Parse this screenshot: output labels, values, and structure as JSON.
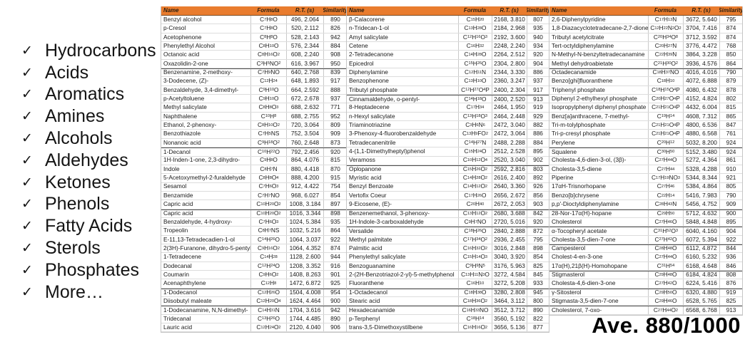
{
  "check_icon": "✓",
  "sidebar": {
    "items": [
      {
        "label": "Hydrocarbons"
      },
      {
        "label": "Acids"
      },
      {
        "label": "Aromatics"
      },
      {
        "label": "Amines"
      },
      {
        "label": "Alcohols"
      },
      {
        "label": "Aldehydes"
      },
      {
        "label": "Ketones"
      },
      {
        "label": "Phenols"
      },
      {
        "label": "Fatty Acids"
      },
      {
        "label": "Sterols"
      },
      {
        "label": "Phosphates"
      },
      {
        "label": "More…"
      }
    ]
  },
  "footer": {
    "average_label": "Ave. 880/1000"
  },
  "colors": {
    "header_bg": "#e97c2e",
    "header_text": "#2b2012",
    "row_border": "#dcdcdc",
    "group_border": "#4f4f4f"
  },
  "tables": [
    {
      "columns": [
        "Name",
        "Formula",
        "R.T. (s)",
        "Similarity"
      ],
      "rows": [
        {
          "name": "Benzyl alcohol",
          "formula": "C7H8O",
          "rt": "496, 2.064",
          "sim": "890"
        },
        {
          "name": "p-Cresol",
          "formula": "C7H8O",
          "rt": "520, 2.112",
          "sim": "826"
        },
        {
          "name": "Acetophenone",
          "formula": "C8H8O",
          "rt": "528, 2.143",
          "sim": "942"
        },
        {
          "name": "Phenylethyl Alcohol",
          "formula": "C8H10O",
          "rt": "576, 2.344",
          "sim": "884"
        },
        {
          "name": "Octanoic acid",
          "formula": "C8H16O2",
          "rt": "608, 2.240",
          "sim": "908"
        },
        {
          "name": "Oxazolidin-2-one",
          "formula": "C3H5NO2",
          "rt": "616, 3.967",
          "sim": "950"
        },
        {
          "name": "Benzenamine, 2-methoxy-",
          "formula": "C7H9NO",
          "rt": "640, 2.768",
          "sim": "839",
          "sep": true
        },
        {
          "name": "3-Dodecene, (Z)-",
          "formula": "C12H24",
          "rt": "648, 1.893",
          "sim": "917"
        },
        {
          "name": "Benzaldehyde, 3,4-dimethyl-",
          "formula": "C9H10O",
          "rt": "664, 2.592",
          "sim": "888"
        },
        {
          "name": "p-Acetyltoluene",
          "formula": "C9H10O",
          "rt": "672, 2.678",
          "sim": "937"
        },
        {
          "name": "Methyl salicylate",
          "formula": "C8H8O3",
          "rt": "688, 2.632",
          "sim": "771"
        },
        {
          "name": "Naphthalene",
          "formula": "C10H8",
          "rt": "688, 2.755",
          "sim": "952"
        },
        {
          "name": "Ethanol, 2-phenoxy-",
          "formula": "C8H10O2",
          "rt": "720, 3.064",
          "sim": "809"
        },
        {
          "name": "Benzothiazole",
          "formula": "C7H5NS",
          "rt": "752, 3.504",
          "sim": "909"
        },
        {
          "name": "Nonanoic acid",
          "formula": "C9H18O2",
          "rt": "760, 2.648",
          "sim": "873"
        },
        {
          "name": "1-Decanol",
          "formula": "C10H22O",
          "rt": "792, 2.456",
          "sim": "920",
          "sep": true
        },
        {
          "name": "1H-Inden-1-one, 2,3-dihydro-",
          "formula": "C9H8O",
          "rt": "864, 4.076",
          "sim": "815"
        },
        {
          "name": "Indole",
          "formula": "C8H7N",
          "rt": "880, 4.418",
          "sim": "870"
        },
        {
          "name": "5-Acetoxymethyl-2-furaldehyde",
          "formula": "C8H8O4",
          "rt": "888, 4.200",
          "sim": "915"
        },
        {
          "name": "Sesamol",
          "formula": "C7H6O3",
          "rt": "912, 4.422",
          "sim": "754"
        },
        {
          "name": "Benzamide",
          "formula": "C7H7NO",
          "rt": "968, 6.027",
          "sim": "854"
        },
        {
          "name": "Capric acid",
          "formula": "C10H20O2",
          "rt": "1008, 3.184",
          "sim": "897"
        },
        {
          "name": "Capric acid",
          "formula": "C10H20O2",
          "rt": "1016, 3.344",
          "sim": "898",
          "sep": true
        },
        {
          "name": "Benzaldehyde, 4-hydroxy-",
          "formula": "C7H6O3",
          "rt": "1024, 5.384",
          "sim": "935"
        },
        {
          "name": "Tropeolin",
          "formula": "C8H7NS",
          "rt": "1032, 5.216",
          "sim": "864"
        },
        {
          "name": "E-11,13-Tetradecadien-1-ol",
          "formula": "C14H26O",
          "rt": "1064, 3.037",
          "sim": "922"
        },
        {
          "name": "2(3H)-Furanone, dihydro-5-pentyl-",
          "formula": "C9H16O2",
          "rt": "1064, 4.352",
          "sim": "874"
        },
        {
          "name": "1-Tetradecene",
          "formula": "C14H28",
          "rt": "1128, 2.600",
          "sim": "944"
        },
        {
          "name": "Dodecanal",
          "formula": "C12H24O",
          "rt": "1208, 3.352",
          "sim": "916"
        },
        {
          "name": "Coumarin",
          "formula": "C9H6O2",
          "rt": "1408, 8.263",
          "sim": "901"
        },
        {
          "name": "Acenaphthylene",
          "formula": "C12H8",
          "rt": "1472, 6.872",
          "sim": "925"
        },
        {
          "name": "1-Dodecanol",
          "formula": "C12H26O",
          "rt": "1504, 4.008",
          "sim": "954",
          "sep": true
        },
        {
          "name": "Diisobutyl maleate",
          "formula": "C12H20O4",
          "rt": "1624, 4.464",
          "sim": "900"
        },
        {
          "name": "1-Dodecanamine, N,N-dimethyl-",
          "formula": "C14H31N",
          "rt": "1704, 3.616",
          "sim": "942",
          "sep": true
        },
        {
          "name": "Tridecanal",
          "formula": "C13H26O",
          "rt": "1744, 4.485",
          "sim": "890"
        },
        {
          "name": "Lauric acid",
          "formula": "C12H24O2",
          "rt": "2120, 4.040",
          "sim": "906"
        }
      ]
    },
    {
      "columns": [
        "Name",
        "Formula",
        "R.T. (s)",
        "Similarity"
      ],
      "rows": [
        {
          "name": "β-Calacorene",
          "formula": "C15H20",
          "rt": "2168, 3.810",
          "sim": "807"
        },
        {
          "name": "n-Tridecan-1-ol",
          "formula": "C13H28O",
          "rt": "2184, 2.968",
          "sim": "935"
        },
        {
          "name": "Amyl salicylate",
          "formula": "C12H16O3",
          "rt": "2192, 3.600",
          "sim": "940"
        },
        {
          "name": "Cetene",
          "formula": "C16H32",
          "rt": "2248, 2.240",
          "sim": "934"
        },
        {
          "name": "2-Tetradecanone",
          "formula": "C14H28O",
          "rt": "2264, 2.512",
          "sim": "920"
        },
        {
          "name": "Epicedrol",
          "formula": "C15H26O",
          "rt": "2304, 2.800",
          "sim": "904"
        },
        {
          "name": "Diphenylamine",
          "formula": "C12H11N",
          "rt": "2344, 3.330",
          "sim": "886"
        },
        {
          "name": "Benzophenone",
          "formula": "C13H10O",
          "rt": "2360, 3.247",
          "sim": "937"
        },
        {
          "name": "Tributyl phosphate",
          "formula": "C12H27O4P",
          "rt": "2400, 2.304",
          "sim": "917"
        },
        {
          "name": "Cinnamaldehyde, o-pentyl-",
          "formula": "C14H18O",
          "rt": "2400, 2.520",
          "sim": "913",
          "sep": true
        },
        {
          "name": "8-Heptadecene",
          "formula": "C17H34",
          "rt": "2464, 1.950",
          "sim": "919"
        },
        {
          "name": "n-Hexyl salicylate",
          "formula": "C13H18O3",
          "rt": "2464, 2.448",
          "sim": "929"
        },
        {
          "name": "Triaminotriazine",
          "formula": "C3H6N6",
          "rt": "2472, 3.040",
          "sim": "882"
        },
        {
          "name": "3-Phenoxy-4-fluorobenzaldehyde",
          "formula": "C13H9FO2",
          "rt": "2472, 3.064",
          "sim": "886"
        },
        {
          "name": "Tetradecanenitrile",
          "formula": "C14H27N",
          "rt": "2488, 2.288",
          "sim": "884"
        },
        {
          "name": "4-(1,1-Dimethylheptyl)phenol",
          "formula": "C15H24O",
          "rt": "2512, 2.528",
          "sim": "895"
        },
        {
          "name": "Veramoss",
          "formula": "C10H12O4",
          "rt": "2520, 3.040",
          "sim": "902"
        },
        {
          "name": "Oplopanone",
          "formula": "C15H26O2",
          "rt": "2592, 2.816",
          "sim": "803",
          "sep": true
        },
        {
          "name": "Myristic acid",
          "formula": "C14H28O2",
          "rt": "2616, 2.400",
          "sim": "892"
        },
        {
          "name": "Benzyl Benzoate",
          "formula": "C14H12O2",
          "rt": "2640, 3.360",
          "sim": "926"
        },
        {
          "name": "Vertofix Coeur",
          "formula": "C17H26O",
          "rt": "2656, 2.672",
          "sim": "856"
        },
        {
          "name": "9-Eicosene, (E)-",
          "formula": "C20H40",
          "rt": "2672, 2.053",
          "sim": "903"
        },
        {
          "name": "Benzenemethanol, 3-phenoxy-",
          "formula": "C13H12O2",
          "rt": "2680, 3.688",
          "sim": "842",
          "sep": true
        },
        {
          "name": "1H-Indole-3-carboxaldehyde",
          "formula": "C9H7NO",
          "rt": "2720, 5.016",
          "sim": "920"
        },
        {
          "name": "Versalide",
          "formula": "C18H26O",
          "rt": "2840, 2.888",
          "sim": "872",
          "sep": true
        },
        {
          "name": "Methyl palmitate",
          "formula": "C17H34O2",
          "rt": "2936, 2.455",
          "sim": "795"
        },
        {
          "name": "Palmitic acid",
          "formula": "C16H32O2",
          "rt": "3016, 2.848",
          "sim": "898"
        },
        {
          "name": "Phenylethyl salicylate",
          "formula": "C15H14O3",
          "rt": "3040, 3.920",
          "sim": "854"
        },
        {
          "name": "Benzoguanamine",
          "formula": "C9H9N5",
          "rt": "3176, 5.963",
          "sim": "825"
        },
        {
          "name": "2-(2H-Benzotriazol-2-yl)-5-methylphenol",
          "formula": "C13H11N3O",
          "rt": "3272, 4.584",
          "sim": "845"
        },
        {
          "name": "Fluoranthene",
          "formula": "C16H10",
          "rt": "3272, 5.208",
          "sim": "933"
        },
        {
          "name": "1-Octadecanol",
          "formula": "C18H38O",
          "rt": "3280, 2.808",
          "sim": "945",
          "sep": true
        },
        {
          "name": "Stearic acid",
          "formula": "C18H36O2",
          "rt": "3464, 3.112",
          "sim": "800"
        },
        {
          "name": "Hexadecanamide",
          "formula": "C16H33NO",
          "rt": "3512, 3.712",
          "sim": "890",
          "sep": true
        },
        {
          "name": "p-Terphenyl",
          "formula": "C18H14",
          "rt": "3560, 5.192",
          "sim": "822"
        },
        {
          "name": "trans-3,5-Dimethoxystilbene",
          "formula": "C16H16O2",
          "rt": "3656, 5.136",
          "sim": "877"
        }
      ]
    },
    {
      "columns": [
        "Name",
        "Formula",
        "R.T. (s)",
        "Similarity"
      ],
      "rows": [
        {
          "name": "2,6-Diphenylpyridine",
          "formula": "C17H13N",
          "rt": "3672, 5.640",
          "sim": "795"
        },
        {
          "name": "1,8-Diazacyclotetradecane-2,7-dione",
          "formula": "C12H22N2O2",
          "rt": "3704, 7.416",
          "sim": "874"
        },
        {
          "name": "Tributyl acetylcitrate",
          "formula": "C20H34O8",
          "rt": "3712, 3.592",
          "sim": "874"
        },
        {
          "name": "Tert-octyldiphenylamine",
          "formula": "C20H27N",
          "rt": "3776, 4.472",
          "sim": "768"
        },
        {
          "name": "N-Methyl-N-benzyltetradecanamine",
          "formula": "C22H39N",
          "rt": "3864, 3.228",
          "sim": "850"
        },
        {
          "name": "Methyl dehydroabietate",
          "formula": "C21H30O2",
          "rt": "3936, 4.576",
          "sim": "864"
        },
        {
          "name": "Octadecanamide",
          "formula": "C18H37NO",
          "rt": "4016, 4.016",
          "sim": "790",
          "sep": true
        },
        {
          "name": "Benzo[ghi]fluoranthene",
          "formula": "C18H10",
          "rt": "4072, 6.888",
          "sim": "879"
        },
        {
          "name": "Triphenyl phosphate",
          "formula": "C18H15O4P",
          "rt": "4080, 6.432",
          "sim": "878"
        },
        {
          "name": "Diphenyl 2-ethylhexyl phosphate",
          "formula": "C20H27O4P",
          "rt": "4152, 4.824",
          "sim": "802"
        },
        {
          "name": "Isopropylphenyl diphenyl phosphate",
          "formula": "C21H21O4P",
          "rt": "4432, 6.004",
          "sim": "815"
        },
        {
          "name": "Benz[a]anthracene, 7-methyl-",
          "formula": "C19H14",
          "rt": "4608, 7.312",
          "sim": "865"
        },
        {
          "name": "Tri-m-tolylphosphate",
          "formula": "C21H21O4P",
          "rt": "4800, 6.536",
          "sim": "847"
        },
        {
          "name": "Tri-p-cresyl phosphate",
          "formula": "C21H21O4P",
          "rt": "4880, 6.568",
          "sim": "761"
        },
        {
          "name": "Perylene",
          "formula": "C20H12",
          "rt": "5032, 8.200",
          "sim": "924"
        },
        {
          "name": "Squalene",
          "formula": "C30H50",
          "rt": "5152, 3.480",
          "sim": "924",
          "sep": true
        },
        {
          "name": "Cholesta-4,6-dien-3-ol, (3β)-",
          "formula": "C27H44O",
          "rt": "5272, 4.364",
          "sim": "861"
        },
        {
          "name": "Cholesta-3,5-diene",
          "formula": "C27H44",
          "rt": "5328, 4.288",
          "sim": "910"
        },
        {
          "name": "Piperine",
          "formula": "C17H19NO3",
          "rt": "5344, 8.344",
          "sim": "921"
        },
        {
          "name": "17αH-Trisnorhopane",
          "formula": "C27H46",
          "rt": "5384, 4.864",
          "sim": "805"
        },
        {
          "name": "Benzo[b]chrysene",
          "formula": "C22H14",
          "rt": "5416, 7.983",
          "sim": "790"
        },
        {
          "name": "p,p'-Dioctyldiphenylamine",
          "formula": "C28H43N",
          "rt": "5456, 4.752",
          "sim": "909"
        },
        {
          "name": "28-Nor-17α(H)-hopane",
          "formula": "C29H50",
          "rt": "5712, 4.632",
          "sim": "900",
          "sep": true
        },
        {
          "name": "Cholesterol",
          "formula": "C27H46O",
          "rt": "5848, 4.848",
          "sim": "895"
        },
        {
          "name": "α-Tocopheryl acetate",
          "formula": "C31H52O3",
          "rt": "6040, 4.160",
          "sim": "904",
          "sep": true
        },
        {
          "name": "Cholesta-3,5-dien-7-one",
          "formula": "C27H42O",
          "rt": "6072, 5.394",
          "sim": "922"
        },
        {
          "name": "Campesterol",
          "formula": "C28H48O",
          "rt": "6112, 4.872",
          "sim": "844",
          "sep": true
        },
        {
          "name": "Cholest-4-en-3-one",
          "formula": "C27H44O",
          "rt": "6160, 5.232",
          "sim": "936"
        },
        {
          "name": "17α(H),21β(H)-Homohopane",
          "formula": "C31H54",
          "rt": "6168, 4.648",
          "sim": "846"
        },
        {
          "name": "Stigmasterol",
          "formula": "C29H48O",
          "rt": "6184, 4.824",
          "sim": "808",
          "sep": true
        },
        {
          "name": "Cholesta-4,6-dien-3-one",
          "formula": "C27H42O",
          "rt": "6224, 5.416",
          "sim": "876"
        },
        {
          "name": "γ-Sitosterol",
          "formula": "C29H50O",
          "rt": "6320, 4.880",
          "sim": "919",
          "sep": true
        },
        {
          "name": "Stigmasta-3,5-dien-7-one",
          "formula": "C29H46O",
          "rt": "6528, 5.765",
          "sim": "825"
        },
        {
          "name": "Cholesterol, 7-oxo-",
          "formula": "C27H44O2",
          "rt": "6568, 6.768",
          "sim": "913",
          "sep": true
        }
      ]
    }
  ]
}
